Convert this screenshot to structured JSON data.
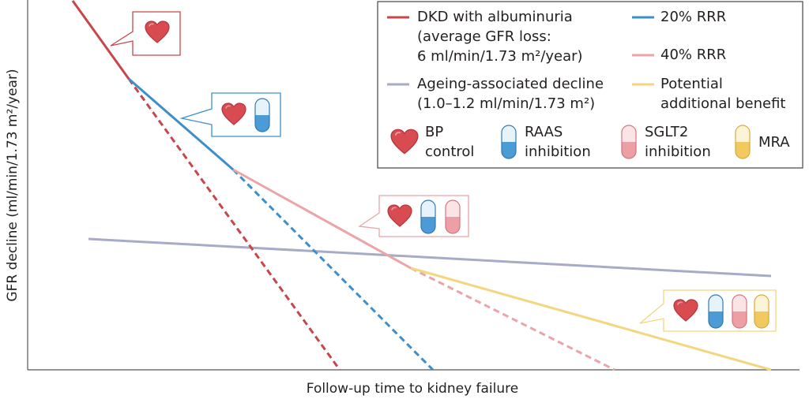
{
  "axes": {
    "y_label": "GFR decline (ml/min/1.73 m²/year)",
    "x_label": "Follow-up time to kidney failure"
  },
  "legend": {
    "dkd": [
      "DKD with albuminuria",
      "(average GFR loss:",
      "6 ml/min/1.73 m²/year)"
    ],
    "rrr20": "20% RRR",
    "rrr40": "40% RRR",
    "ageing": [
      "Ageing-associated decline",
      "(1.0–1.2 ml/min/1.73 m²)"
    ],
    "benefit": [
      "Potential",
      "additional benefit"
    ],
    "bp": [
      "BP",
      "control"
    ],
    "raas": [
      "RAAS",
      "inhibition"
    ],
    "sglt2": [
      "SGLT2",
      "inhibition"
    ],
    "mra": "MRA"
  }
}
